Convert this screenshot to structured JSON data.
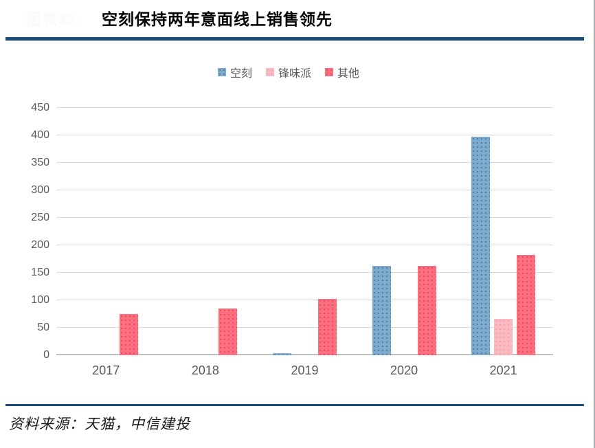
{
  "header": {
    "figure_label": "图表33:",
    "title": "空刻保持两年意面线上销售领先"
  },
  "chart_data": {
    "type": "bar",
    "title": "空刻保持两年意面线上销售领先",
    "categories": [
      "2017",
      "2018",
      "2019",
      "2020",
      "2021"
    ],
    "series": [
      {
        "name": "空刻",
        "color": "#7EAACC",
        "values": [
          0,
          0,
          4,
          163,
          398
        ]
      },
      {
        "name": "锋味派",
        "color": "#FBBAC1",
        "values": [
          0,
          0,
          0,
          0,
          66
        ]
      },
      {
        "name": "其他",
        "color": "#FC6F7E",
        "values": [
          75,
          85,
          103,
          162,
          182
        ]
      }
    ],
    "ylim": [
      0,
      450
    ],
    "ytick_step": 50,
    "grid": true,
    "legend_position": "top-center",
    "xlabel": "",
    "ylabel": ""
  },
  "footer": {
    "source": "资料来源：天猫，中信建投"
  },
  "colors": {
    "accent_rule": "#1B4D7A",
    "grid_line": "#D9D9D9",
    "axis_line": "#BFBFBF",
    "axis_text": "#595959"
  }
}
